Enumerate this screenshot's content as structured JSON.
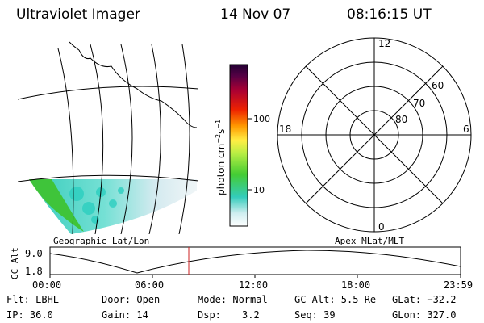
{
  "header": {
    "title": "Ultraviolet Imager",
    "date": "14 Nov 07",
    "time": "08:16:15 UT"
  },
  "colorbar": {
    "unit_label": "photon cm",
    "unit_exp1": "−2",
    "unit_mid": "s",
    "unit_exp2": "−1",
    "tick_100": "100",
    "tick_10": "10"
  },
  "polar": {
    "mlt_top": "12",
    "mlt_left": "18",
    "mlt_right": "6",
    "mlt_bottom": "0",
    "lat_60": "60",
    "lat_70": "70",
    "lat_80": "80"
  },
  "panel_labels": {
    "geo": "Geographic Lat/Lon",
    "apex": "Apex MLat/MLT"
  },
  "altitude_plot": {
    "ylabel": "GC Alt",
    "ytick_top": "9.0",
    "ytick_bottom": "1.8",
    "xticks": [
      "00:00",
      "06:00",
      "12:00",
      "18:00",
      "23:59"
    ]
  },
  "info": {
    "flt": "Flt: LBHL",
    "door": "Door: Open",
    "mode": "Mode: Normal",
    "gcalt": "GC Alt: 5.5 Re",
    "glat": "GLat: −32.2",
    "ip": "IP: 36.0",
    "gain": "Gain: 14",
    "dsp_label": "Dsp:",
    "dsp_value": "3.2",
    "seq": "Seq: 39",
    "glon": "GLon: 327.0"
  },
  "colors": {
    "marker": "#cc2222",
    "line": "#000000",
    "aurora_green": "#44cc33",
    "aurora_cyan": "#33ccbb",
    "background": "#ffffff"
  }
}
